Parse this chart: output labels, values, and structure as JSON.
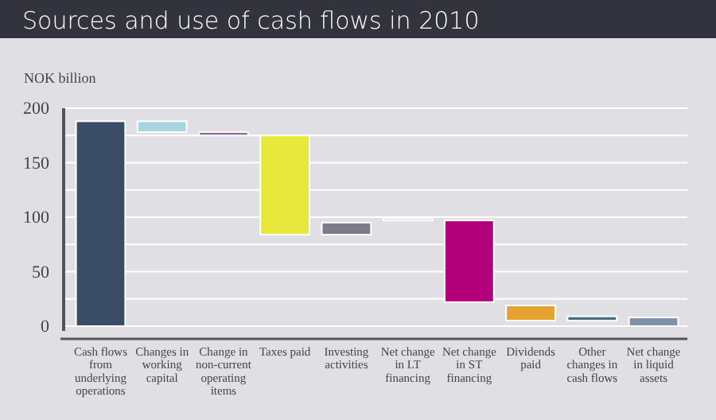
{
  "chart_data": {
    "type": "bar",
    "title": "Sources and use of cash flows in 2010",
    "ylabel": "NOK billion",
    "categories": [
      "Cash flows from underlying operations",
      "Changes in working capital",
      "Change in non-current operating items",
      "Taxes paid",
      "Investing activities",
      "Net change in LT financing",
      "Net change in ST financing",
      "Dividends paid",
      "Other changes in cash flows",
      "Net change in liquid assets"
    ],
    "values": [
      188,
      10,
      3,
      91,
      11,
      2,
      75,
      14,
      4,
      8
    ],
    "base": [
      0,
      178,
      175,
      84,
      84,
      97,
      22,
      5,
      5,
      0
    ],
    "colors": [
      "#3b4d66",
      "#a9d5e0",
      "#8a5a98",
      "#e6e83c",
      "#7b7b89",
      "#c9b9d9",
      "#b3007a",
      "#e6a133",
      "#4d6d82",
      "#8391a8"
    ],
    "ylim": [
      0,
      200
    ],
    "yticks": [
      0,
      {
        "value": 25,
        "label": null
      },
      50,
      {
        "value": 75,
        "label": null
      },
      100,
      {
        "value": 125,
        "label": null
      },
      150,
      {
        "value": 175,
        "label": null
      },
      200
    ],
    "grid": true
  }
}
